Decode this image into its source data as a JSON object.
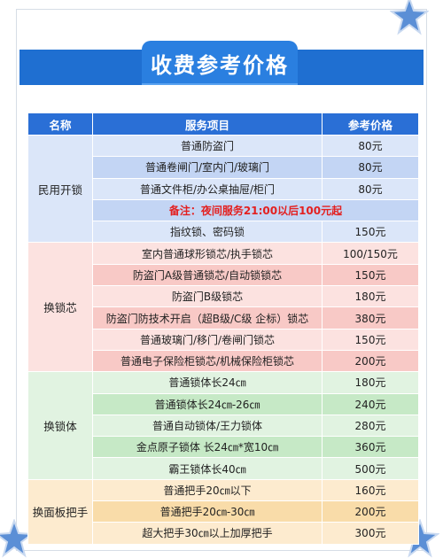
{
  "title": "收费参考价格",
  "colors": {
    "brand": "#2a7fe0",
    "header": "#2a6fd6",
    "note": "#e32020"
  },
  "headers": {
    "name": "名称",
    "service": "服务项目",
    "price": "参考价格"
  },
  "groups": [
    {
      "name": "民用开锁",
      "rows": [
        {
          "service": "普通防盗门",
          "price": "80元"
        },
        {
          "service": "普通卷闸门/室内门/玻璃门",
          "price": "80元"
        },
        {
          "service": "普通文件柜/办公桌抽屉/柜门",
          "price": "80元"
        },
        {
          "note": "备注：夜间服务21:00以后100元起"
        },
        {
          "service": "指纹锁、密码锁",
          "price": "150元"
        }
      ]
    },
    {
      "name": "换锁芯",
      "rows": [
        {
          "service": "室内普通球形锁芯/执手锁芯",
          "price": "100/150元"
        },
        {
          "service": "防盗门A级普通锁芯/自动锁锁芯",
          "price": "150元"
        },
        {
          "service": "防盗门B级锁芯",
          "price": "180元"
        },
        {
          "service": "防盗门防技术开启（超B级/C级 企标）锁芯",
          "price": "380元"
        },
        {
          "service": "普通玻璃门/移门/卷闸门锁芯",
          "price": "150元"
        },
        {
          "service": "普通电子保险柜锁芯/机械保险柜锁芯",
          "price": "200元"
        }
      ]
    },
    {
      "name": "换锁体",
      "rows": [
        {
          "service": "普通锁体长24㎝",
          "price": "180元"
        },
        {
          "service": "普通锁体长24㎝-26㎝",
          "price": "240元"
        },
        {
          "service": "普通自动锁体/王力锁体",
          "price": "280元"
        },
        {
          "service": "金点原子锁体 长24㎝*宽10㎝",
          "price": "360元"
        },
        {
          "service": "霸王锁体长40㎝",
          "price": "500元"
        }
      ]
    },
    {
      "name": "换面板把手",
      "rows": [
        {
          "service": "普通把手20㎝以下",
          "price": "160元"
        },
        {
          "service": "普通把手20㎝-30㎝",
          "price": "200元"
        },
        {
          "service": "超大把手30㎝以上加厚把手",
          "price": "300元"
        }
      ]
    }
  ]
}
